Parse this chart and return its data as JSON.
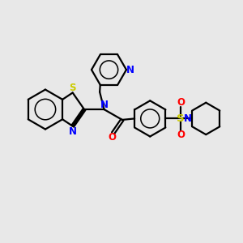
{
  "bg_color": "#e8e8e8",
  "bond_color": "#000000",
  "N_color": "#0000ff",
  "S_color": "#cccc00",
  "O_color": "#ff0000",
  "line_width": 1.6,
  "fig_width": 3.0,
  "fig_height": 3.0,
  "dpi": 100,
  "xlim": [
    0,
    10
  ],
  "ylim": [
    0,
    10
  ]
}
